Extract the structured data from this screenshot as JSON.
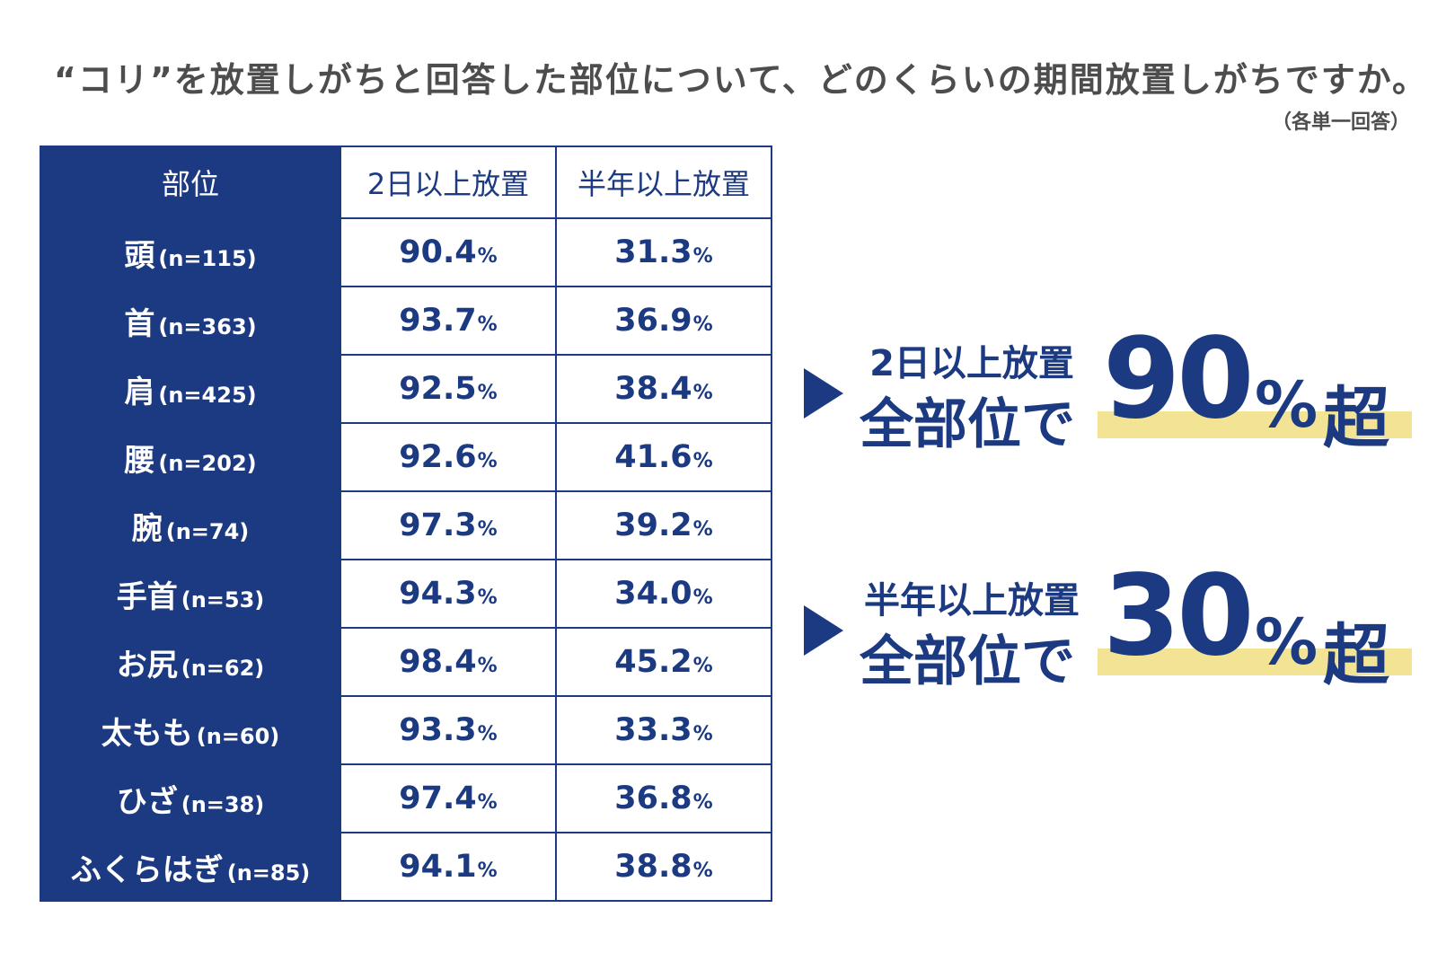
{
  "title": "“コリ”を放置しがちと回答した部位について、どのくらいの期間放置しがちですか。",
  "note": "（各単一回答）",
  "chart_data": {
    "type": "table",
    "columns": [
      "部位",
      "2日以上放置",
      "半年以上放置"
    ],
    "rows": [
      {
        "part": "頭",
        "n": "(n=115)",
        "two_days": "90.4",
        "half_year": "31.3"
      },
      {
        "part": "首",
        "n": "(n=363)",
        "two_days": "93.7",
        "half_year": "36.9"
      },
      {
        "part": "肩",
        "n": "(n=425)",
        "two_days": "92.5",
        "half_year": "38.4"
      },
      {
        "part": "腰",
        "n": "(n=202)",
        "two_days": "92.6",
        "half_year": "41.6"
      },
      {
        "part": "腕",
        "n": "(n=74)",
        "two_days": "97.3",
        "half_year": "39.2"
      },
      {
        "part": "手首",
        "n": "(n=53)",
        "two_days": "94.3",
        "half_year": "34.0"
      },
      {
        "part": "お尻",
        "n": "(n=62)",
        "two_days": "98.4",
        "half_year": "45.2"
      },
      {
        "part": "太もも",
        "n": "(n=60)",
        "two_days": "93.3",
        "half_year": "33.3"
      },
      {
        "part": "ひざ",
        "n": "(n=38)",
        "two_days": "97.4",
        "half_year": "36.8"
      },
      {
        "part": "ふくらはぎ",
        "n": "(n=85)",
        "two_days": "94.1",
        "half_year": "38.8"
      }
    ],
    "unit": "%"
  },
  "callouts": [
    {
      "label": "2日以上放置",
      "main": "全部位で",
      "value": "90",
      "unit": "%",
      "suffix": "超"
    },
    {
      "label": "半年以上放置",
      "main": "全部位で",
      "value": "30",
      "unit": "%",
      "suffix": "超"
    }
  ],
  "colors": {
    "navy": "#1c3a82",
    "highlight": "#f3e394",
    "text": "#4d4d4d"
  }
}
